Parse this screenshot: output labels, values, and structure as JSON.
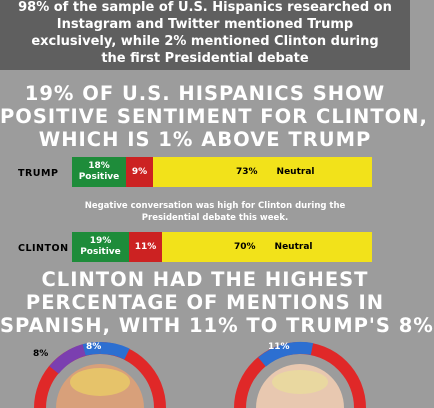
{
  "header": {
    "lines": [
      "98% of the sample of U.S. Hispanics researched on",
      "Instagram and Twitter mentioned Trump",
      "exclusively, while 2% mentioned Clinton during",
      "the first Presidential debate"
    ]
  },
  "sentiment_heading": {
    "lines": [
      "19% OF U.S. HISPANICS SHOW",
      "POSITIVE SENTIMENT FOR CLINTON,",
      "WHICH IS 1% ABOVE TRUMP"
    ]
  },
  "chart_data": [
    {
      "type": "bar",
      "categories": [
        "TRUMP",
        "CLINTON"
      ],
      "series": [
        {
          "name": "Positive",
          "values": [
            18,
            19
          ]
        },
        {
          "name": "Negative",
          "values": [
            9,
            11
          ]
        },
        {
          "name": "Neutral",
          "values": [
            73,
            70
          ]
        }
      ],
      "labels": {
        "trump": {
          "positive": [
            "18%",
            "Positive"
          ],
          "negative": "9%",
          "neutral_pct": "73%",
          "neutral_label": "Neutral"
        },
        "clinton": {
          "positive": [
            "19%",
            "Positive"
          ],
          "negative": "11%",
          "neutral_pct": "70%",
          "neutral_label": "Neutral"
        }
      },
      "colors": {
        "positive": "#1e8c3a",
        "negative": "#cc2222",
        "neutral": "#f2e21a"
      }
    }
  ],
  "note": {
    "lines": [
      "Negative conversation was high for Clinton during the",
      "Presidential debate this week."
    ]
  },
  "spanish_heading": {
    "lines": [
      "CLINTON HAD THE HIGHEST",
      "PERCENTAGE OF MENTIONS IN",
      "SPANISH, WITH 11% TO TRUMP'S 8%"
    ]
  },
  "donuts": {
    "trump": {
      "blue_label": "8%",
      "purple_label": "8%"
    },
    "clinton": {
      "blue_label": "11%"
    },
    "colors": {
      "blue": "#2c6fd1",
      "purple": "#7b3fb0",
      "red": "#e02828"
    }
  }
}
